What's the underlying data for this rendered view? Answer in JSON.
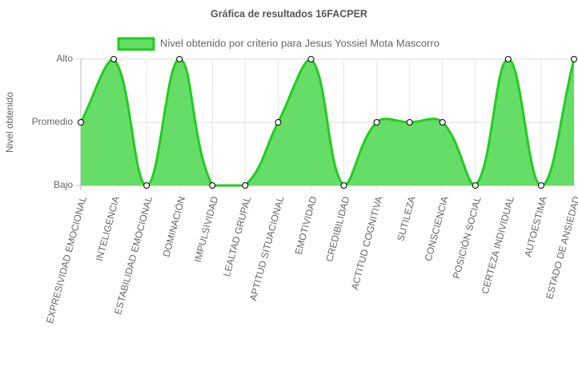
{
  "chart_data": {
    "type": "line",
    "title": "Gráfica de resultados 16FACPER",
    "y_label": "Nivel obtenido",
    "categories": [
      "EXPRESIVIDAD EMOCIONAL",
      "INTELIGENCIA",
      "ESTABILIDAD EMOCIONAL",
      "DOMINACIÓN",
      "IMPULSIVIDAD",
      "LEALTAD GRUPAL",
      "APTITUD SITUACIONAL",
      "EMOTIVIDAD",
      "CREDIBILIDAD",
      "ACTITUD COGNITIVA",
      "SUTILEZA",
      "CONSCIENCIA",
      "POSICIÓN SOCIAL",
      "CERTEZA INDIVIDUAL",
      "AUTOESTIMA",
      "ESTADO DE ANSIEDAD"
    ],
    "series": [
      {
        "name": "Nivel obtenido por criterio para Jesus Yossiel Mota Mascorro",
        "color": "#22cc22",
        "fill": "#66dd66",
        "values": [
          2,
          3,
          1,
          3,
          1,
          1,
          2,
          3,
          1,
          2,
          2,
          2,
          1,
          3,
          1,
          3
        ]
      }
    ],
    "ylim": [
      1,
      3
    ],
    "yticks": [
      {
        "value": 1,
        "label": "Bajo"
      },
      {
        "value": 2,
        "label": "Promedio"
      },
      {
        "value": 3,
        "label": "Alto"
      }
    ],
    "grid": true,
    "legend": "top",
    "tension": 0.4
  }
}
